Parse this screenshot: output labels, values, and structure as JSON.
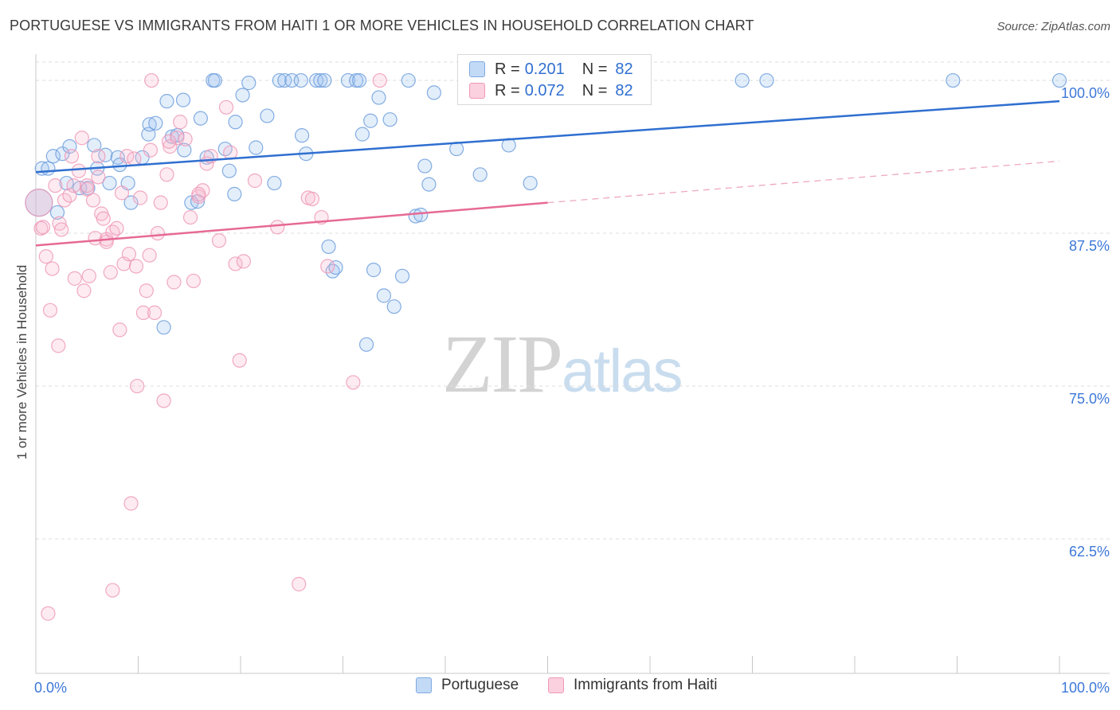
{
  "title": "PORTUGUESE VS IMMIGRANTS FROM HAITI 1 OR MORE VEHICLES IN HOUSEHOLD CORRELATION CHART",
  "source": "Source: ZipAtlas.com",
  "watermark": {
    "zip": "ZIP",
    "atlas": "atlas"
  },
  "legend": {
    "rows": [
      {
        "r_label": "R =",
        "r_value": "0.201",
        "n_label": "N =",
        "n_value": "82"
      },
      {
        "r_label": "R =",
        "r_value": "0.072",
        "n_label": "N =",
        "n_value": "82"
      }
    ]
  },
  "chart_data": {
    "type": "scatter",
    "title": "PORTUGUESE VS IMMIGRANTS FROM HAITI 1 OR MORE VEHICLES IN HOUSEHOLD CORRELATION CHART",
    "xlabel": "",
    "ylabel": "1 or more Vehicles in Household",
    "xlim": [
      0,
      100
    ],
    "ylim": [
      51.5,
      101.5
    ],
    "x_tick_labels": [
      "0.0%",
      "100.0%"
    ],
    "y_ticks": [
      100.0,
      87.5,
      75.0,
      62.5
    ],
    "y_tick_labels": [
      "100.0%",
      "87.5%",
      "75.0%",
      "62.5%"
    ],
    "grid": true,
    "legend_position": "top-center",
    "colors": {
      "portuguese": "#8db7ea",
      "haiti": "#f2a6c0",
      "blue_line": "#2f6fd0",
      "pink_line": "#e66a95",
      "tick_label": "#3d78d8"
    },
    "series": [
      {
        "name": "Portuguese",
        "trend": {
          "x0": 0,
          "y0": 92.5,
          "x1": 100,
          "y1": 98.3
        },
        "points": [
          [
            0.3,
            90.0
          ],
          [
            0.6,
            92.8
          ],
          [
            1.2,
            92.8
          ],
          [
            1.7,
            93.8
          ],
          [
            2.1,
            89.2
          ],
          [
            2.6,
            94.0
          ],
          [
            3.0,
            91.6
          ],
          [
            3.3,
            94.6
          ],
          [
            4.3,
            91.2
          ],
          [
            5.1,
            91.2
          ],
          [
            5.7,
            94.7
          ],
          [
            6.8,
            93.9
          ],
          [
            6.0,
            92.8
          ],
          [
            7.2,
            91.6
          ],
          [
            8.0,
            93.7
          ],
          [
            8.2,
            93.1
          ],
          [
            9.0,
            91.6
          ],
          [
            9.3,
            90.0
          ],
          [
            10.4,
            93.7
          ],
          [
            11.0,
            95.6
          ],
          [
            11.1,
            96.4
          ],
          [
            11.7,
            96.5
          ],
          [
            12.5,
            79.8
          ],
          [
            12.8,
            98.3
          ],
          [
            13.3,
            95.4
          ],
          [
            13.8,
            95.5
          ],
          [
            14.4,
            98.4
          ],
          [
            14.5,
            94.3
          ],
          [
            15.2,
            90.0
          ],
          [
            15.8,
            90.1
          ],
          [
            16.1,
            96.9
          ],
          [
            16.7,
            93.7
          ],
          [
            17.3,
            100.0
          ],
          [
            17.5,
            100.0
          ],
          [
            18.5,
            94.4
          ],
          [
            18.9,
            92.6
          ],
          [
            19.4,
            90.7
          ],
          [
            19.5,
            96.6
          ],
          [
            20.2,
            98.8
          ],
          [
            20.8,
            99.8
          ],
          [
            21.5,
            94.5
          ],
          [
            22.6,
            97.1
          ],
          [
            23.3,
            91.6
          ],
          [
            23.8,
            100.0
          ],
          [
            24.3,
            100.0
          ],
          [
            25.0,
            100.0
          ],
          [
            25.9,
            100.0
          ],
          [
            26.0,
            95.5
          ],
          [
            26.4,
            94.0
          ],
          [
            27.4,
            100.0
          ],
          [
            27.8,
            100.0
          ],
          [
            28.2,
            100.0
          ],
          [
            28.6,
            86.4
          ],
          [
            29.0,
            84.4
          ],
          [
            29.3,
            84.7
          ],
          [
            30.5,
            100.0
          ],
          [
            31.3,
            100.0
          ],
          [
            31.6,
            100.0
          ],
          [
            31.9,
            95.6
          ],
          [
            32.3,
            78.4
          ],
          [
            32.7,
            96.7
          ],
          [
            33.0,
            84.5
          ],
          [
            33.5,
            98.6
          ],
          [
            34.0,
            82.4
          ],
          [
            34.6,
            96.8
          ],
          [
            35.0,
            81.5
          ],
          [
            35.8,
            84.0
          ],
          [
            36.4,
            100.0
          ],
          [
            37.1,
            88.9
          ],
          [
            37.6,
            89.0
          ],
          [
            38.0,
            93.0
          ],
          [
            38.4,
            91.5
          ],
          [
            38.9,
            99.0
          ],
          [
            41.1,
            94.4
          ],
          [
            43.4,
            92.3
          ],
          [
            46.2,
            94.7
          ],
          [
            48.3,
            91.6
          ],
          [
            50.5,
            100.0
          ],
          [
            69.0,
            100.0
          ],
          [
            71.4,
            100.0
          ],
          [
            89.6,
            100.0
          ],
          [
            100.0,
            100.0
          ]
        ]
      },
      {
        "name": "Immigrants from Haiti",
        "trend": {
          "x0": 0,
          "y0": 86.5,
          "x1": 50,
          "y1": 90.0,
          "dashed_to": {
            "x": 100,
            "y": 93.4
          }
        },
        "points": [
          [
            0.3,
            90.0
          ],
          [
            0.5,
            87.9
          ],
          [
            0.7,
            88.0
          ],
          [
            1.0,
            85.6
          ],
          [
            1.4,
            81.2
          ],
          [
            1.6,
            84.6
          ],
          [
            1.9,
            91.4
          ],
          [
            2.2,
            78.3
          ],
          [
            2.3,
            88.3
          ],
          [
            2.5,
            87.8
          ],
          [
            2.8,
            90.2
          ],
          [
            3.3,
            90.6
          ],
          [
            3.5,
            93.8
          ],
          [
            3.8,
            83.8
          ],
          [
            4.2,
            92.6
          ],
          [
            4.5,
            95.3
          ],
          [
            4.7,
            82.8
          ],
          [
            5.0,
            91.1
          ],
          [
            5.2,
            84.0
          ],
          [
            5.6,
            90.2
          ],
          [
            5.8,
            87.1
          ],
          [
            6.1,
            92.1
          ],
          [
            6.4,
            89.1
          ],
          [
            6.6,
            88.7
          ],
          [
            6.9,
            87.0
          ],
          [
            7.3,
            84.3
          ],
          [
            7.5,
            87.6
          ],
          [
            7.9,
            87.9
          ],
          [
            8.2,
            79.6
          ],
          [
            8.4,
            90.8
          ],
          [
            8.6,
            85.0
          ],
          [
            8.9,
            93.8
          ],
          [
            9.1,
            85.8
          ],
          [
            9.3,
            65.4
          ],
          [
            9.6,
            93.6
          ],
          [
            9.9,
            75.0
          ],
          [
            10.2,
            90.4
          ],
          [
            10.5,
            81.0
          ],
          [
            10.8,
            82.8
          ],
          [
            11.1,
            85.7
          ],
          [
            11.3,
            100.0
          ],
          [
            11.6,
            81.0
          ],
          [
            11.9,
            87.5
          ],
          [
            12.2,
            90.0
          ],
          [
            12.5,
            73.8
          ],
          [
            12.8,
            92.3
          ],
          [
            13.1,
            94.6
          ],
          [
            13.5,
            83.5
          ],
          [
            13.8,
            95.3
          ],
          [
            14.1,
            96.6
          ],
          [
            14.6,
            95.2
          ],
          [
            15.1,
            88.8
          ],
          [
            15.4,
            83.6
          ],
          [
            15.9,
            90.5
          ],
          [
            16.3,
            91.0
          ],
          [
            16.7,
            93.2
          ],
          [
            17.1,
            93.8
          ],
          [
            17.9,
            86.9
          ],
          [
            18.6,
            97.8
          ],
          [
            19.5,
            85.0
          ],
          [
            19.9,
            77.1
          ],
          [
            20.3,
            85.2
          ],
          [
            21.4,
            91.8
          ],
          [
            23.6,
            88.0
          ],
          [
            25.7,
            58.8
          ],
          [
            26.6,
            90.4
          ],
          [
            27.0,
            90.3
          ],
          [
            27.9,
            88.8
          ],
          [
            28.5,
            84.8
          ],
          [
            31.0,
            75.3
          ],
          [
            33.6,
            100.0
          ],
          [
            5.0,
            91.4
          ],
          [
            6.1,
            93.8
          ],
          [
            13.0,
            95.0
          ],
          [
            15.9,
            90.7
          ],
          [
            1.2,
            56.4
          ],
          [
            7.5,
            58.3
          ],
          [
            19.0,
            94.1
          ],
          [
            11.2,
            94.3
          ],
          [
            6.9,
            86.8
          ],
          [
            3.7,
            91.4
          ],
          [
            9.8,
            84.8
          ]
        ]
      }
    ]
  }
}
